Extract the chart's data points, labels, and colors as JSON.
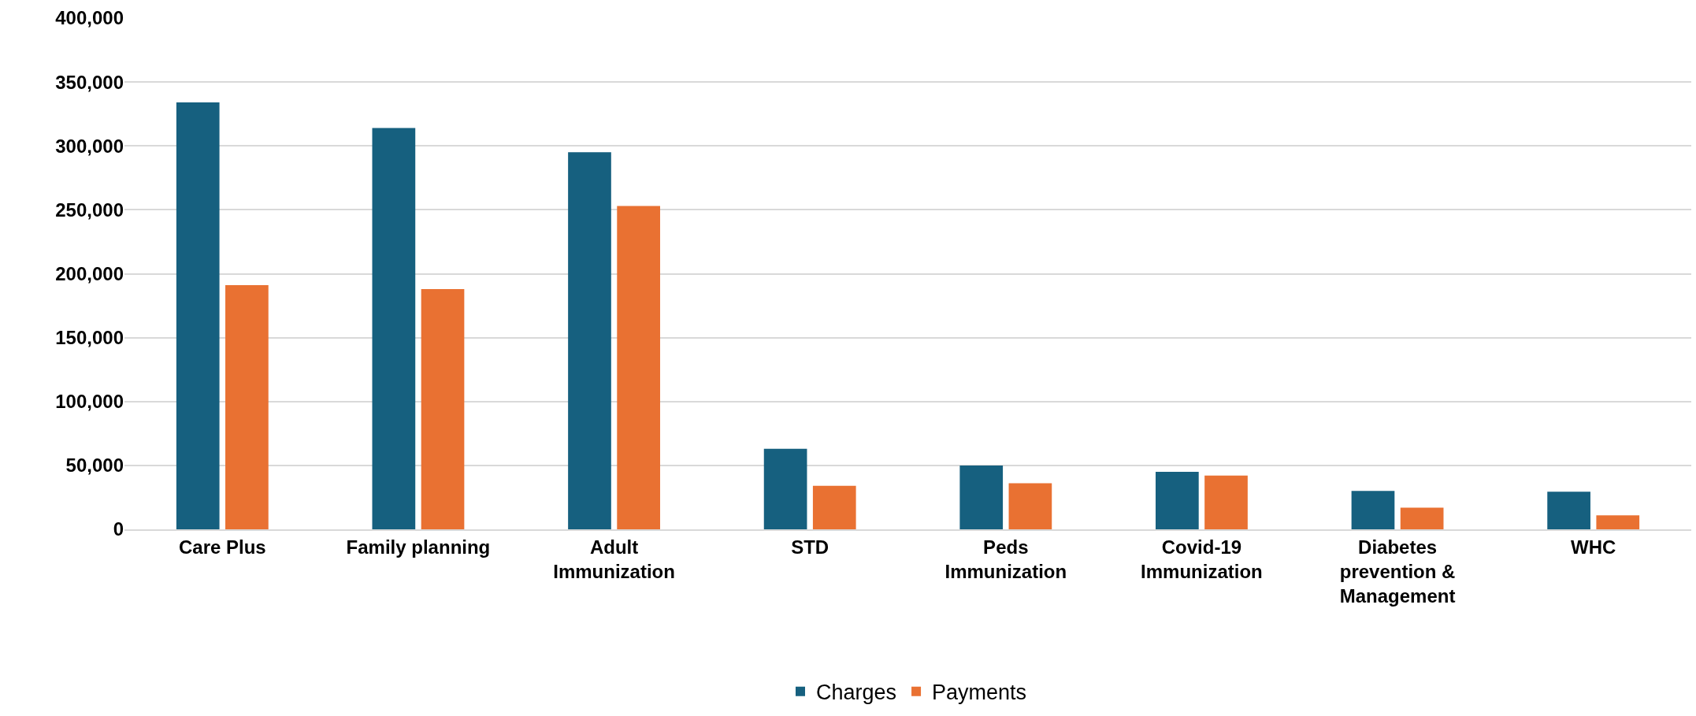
{
  "chart_data": {
    "type": "bar",
    "categories": [
      "Care Plus",
      "Family planning",
      "Adult Immunization",
      "STD",
      "Peds Immunization",
      "Covid-19 Immunization",
      "Diabetes prevention & Management",
      "WHC"
    ],
    "series": [
      {
        "name": "Charges",
        "color": "#16607f",
        "values": [
          334000,
          314000,
          295000,
          63000,
          50000,
          45000,
          30000,
          29500
        ]
      },
      {
        "name": "Payments",
        "color": "#e97132",
        "values": [
          191000,
          188000,
          253000,
          34000,
          36000,
          42000,
          17000,
          11000
        ]
      }
    ],
    "ylim": [
      0,
      400000
    ],
    "yticks": [
      {
        "value": 0,
        "label": "0"
      },
      {
        "value": 50000,
        "label": "50,000"
      },
      {
        "value": 100000,
        "label": "100,000"
      },
      {
        "value": 150000,
        "label": "150,000"
      },
      {
        "value": 200000,
        "label": "200,000"
      },
      {
        "value": 250000,
        "label": "250,000"
      },
      {
        "value": 300000,
        "label": "300,000"
      },
      {
        "value": 350000,
        "label": "350,000"
      },
      {
        "value": 400000,
        "label": "400,000"
      }
    ],
    "grid": "y",
    "legend": "bottom"
  }
}
